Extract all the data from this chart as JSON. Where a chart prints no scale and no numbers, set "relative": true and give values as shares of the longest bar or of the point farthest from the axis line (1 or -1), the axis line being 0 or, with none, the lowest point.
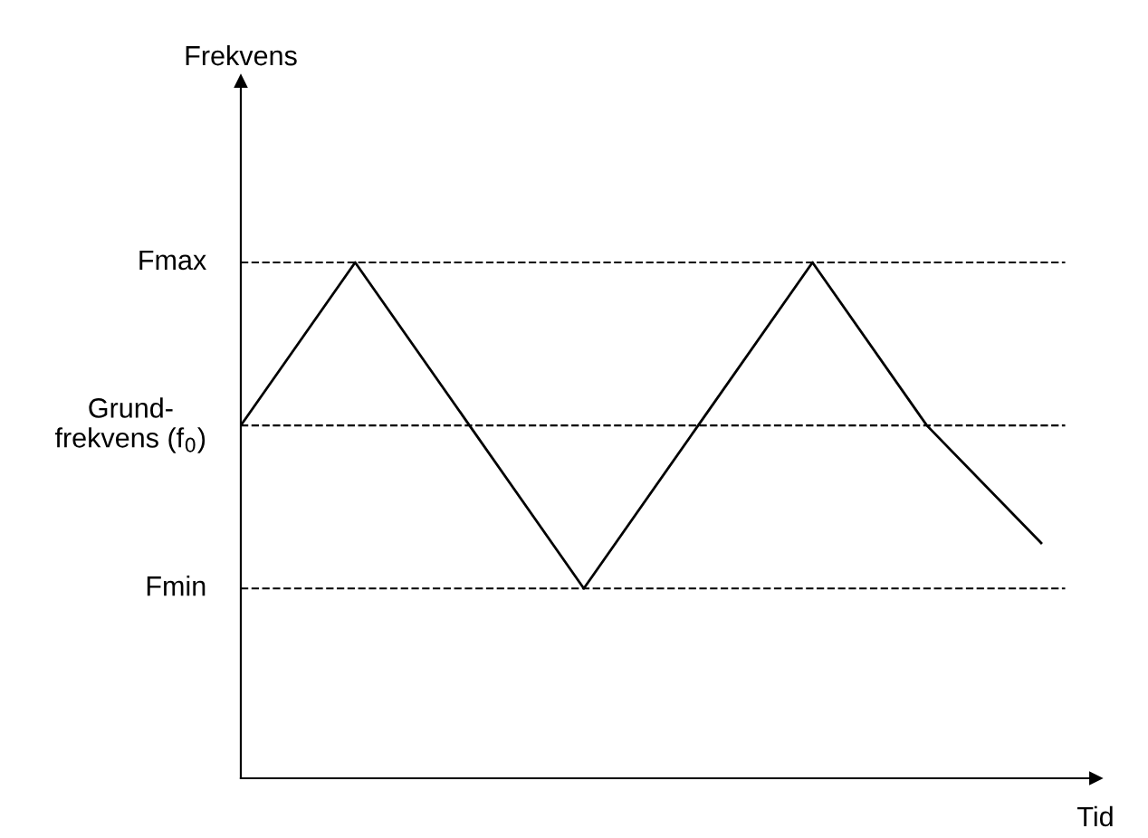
{
  "chart_data": {
    "type": "line",
    "relative": true,
    "xlabel": "Tid",
    "annotations": [
      "Frekvens"
    ],
    "categories": [
      null,
      null,
      null,
      null,
      null,
      null,
      null,
      null
    ],
    "series": [
      {
        "color": "#000000",
        "values": [
          0.684,
          1,
          0.684,
          0.368,
          0.684,
          1,
          0.684,
          0.456
        ]
      }
    ],
    "ref_lines": [
      {
        "axis": "y",
        "value": 1,
        "label": "Fmax",
        "color": "#000000",
        "line_style": "dashed"
      },
      {
        "axis": "y",
        "value": 0.684,
        "label": "Grund-\nfrekvens (f$_{0}$)",
        "color": "#000000",
        "line_style": "dashed"
      },
      {
        "axis": "y",
        "value": 0.368,
        "label": "Fmin",
        "color": "#000000",
        "line_style": "dashed"
      }
    ],
    "marker": "none",
    "line_style": "solid"
  }
}
